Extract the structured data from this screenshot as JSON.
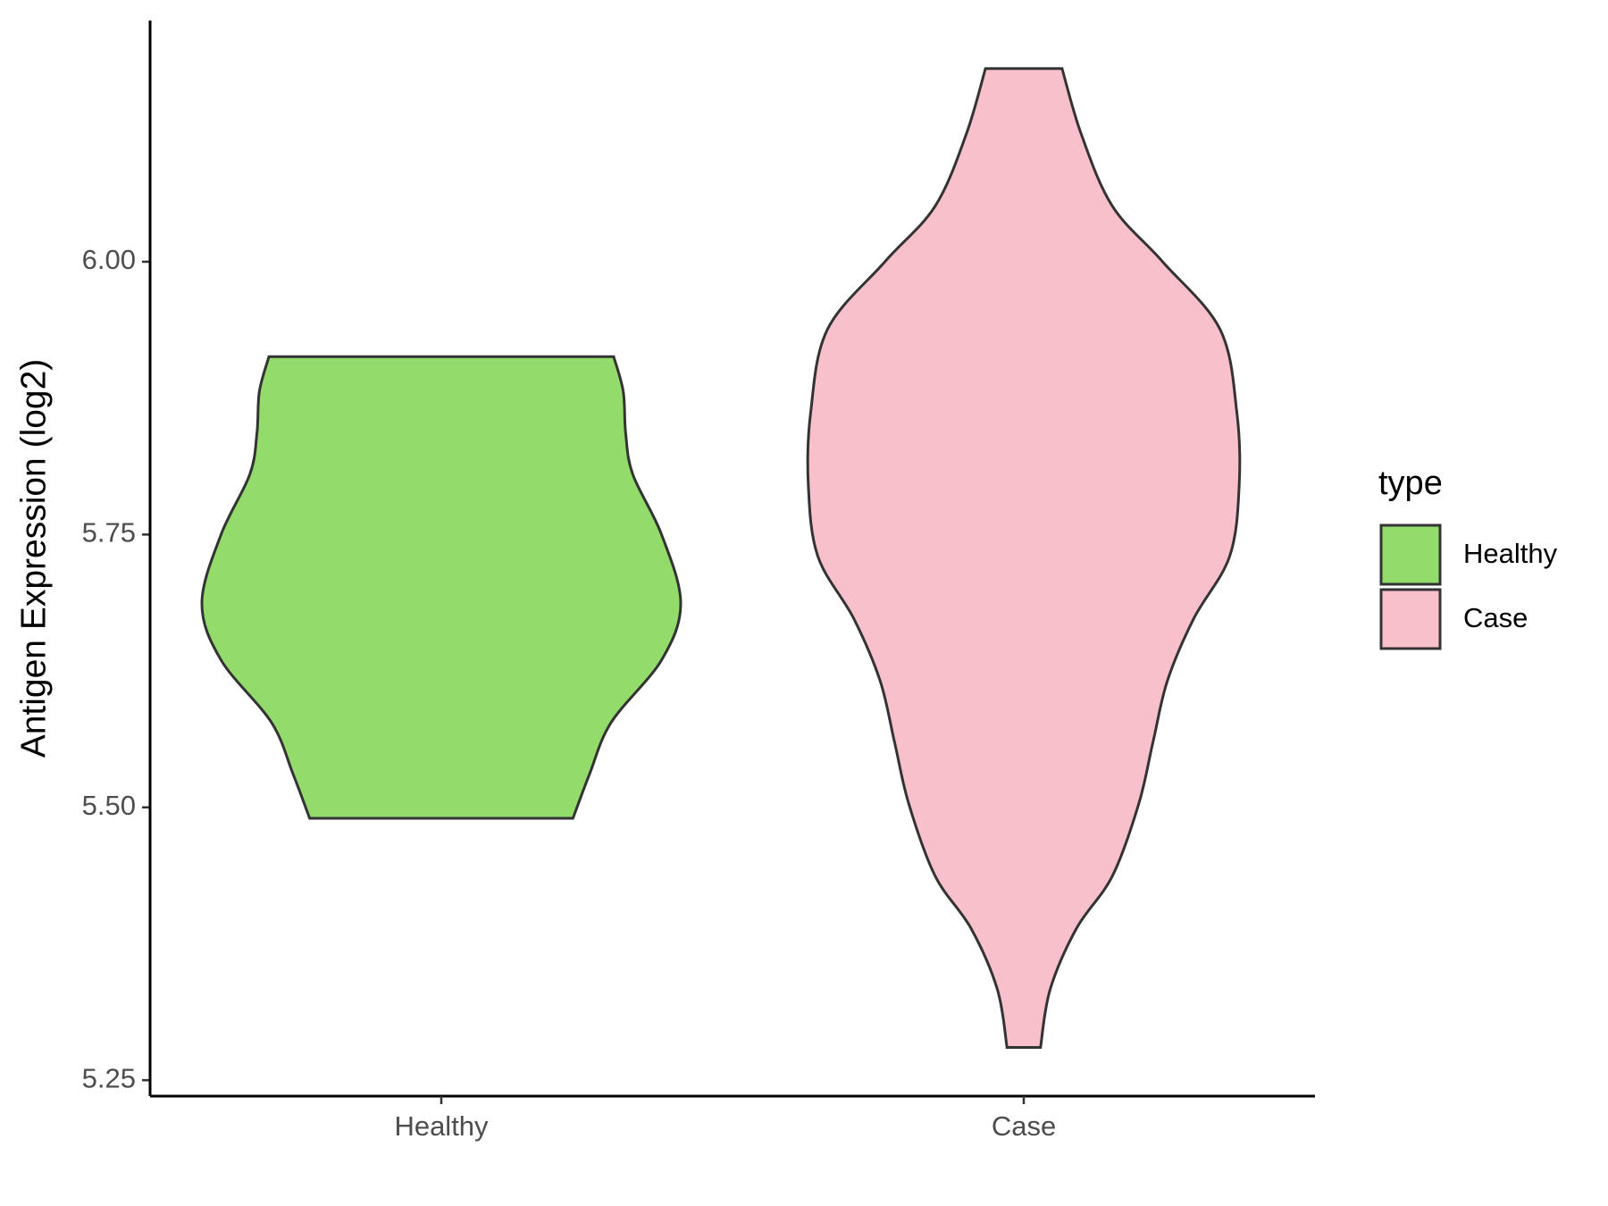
{
  "chart_data": {
    "type": "violin",
    "y_label": "Antigen Expression (log2)",
    "categories": [
      "Healthy",
      "Case"
    ],
    "legend_title": "type",
    "legend": "right",
    "series": [
      {
        "name": "Healthy",
        "color": "#93dc6b",
        "y": [
          5.913,
          5.881,
          5.843,
          5.805,
          5.75,
          5.687,
          5.635,
          5.578,
          5.531,
          5.49
        ],
        "density": [
          0.72,
          0.76,
          0.77,
          0.8,
          0.92,
          1.0,
          0.92,
          0.71,
          0.62,
          0.55
        ]
      },
      {
        "name": "Case",
        "color": "#f8c0cb",
        "y": [
          6.177,
          6.117,
          6.051,
          6.0,
          5.938,
          5.862,
          5.796,
          5.73,
          5.673,
          5.616,
          5.56,
          5.503,
          5.437,
          5.389,
          5.333,
          5.28
        ],
        "density": [
          0.16,
          0.24,
          0.37,
          0.58,
          0.82,
          0.89,
          0.9,
          0.86,
          0.71,
          0.6,
          0.54,
          0.48,
          0.37,
          0.22,
          0.11,
          0.07
        ]
      }
    ],
    "ylim": [
      5.2354,
      6.221
    ],
    "yticks": [
      {
        "value": 5.25,
        "label": "5.25"
      },
      {
        "value": 5.5,
        "label": "5.50"
      },
      {
        "value": 5.75,
        "label": "5.75"
      },
      {
        "value": 6.0,
        "label": "6.00"
      }
    ],
    "grid": false
  }
}
